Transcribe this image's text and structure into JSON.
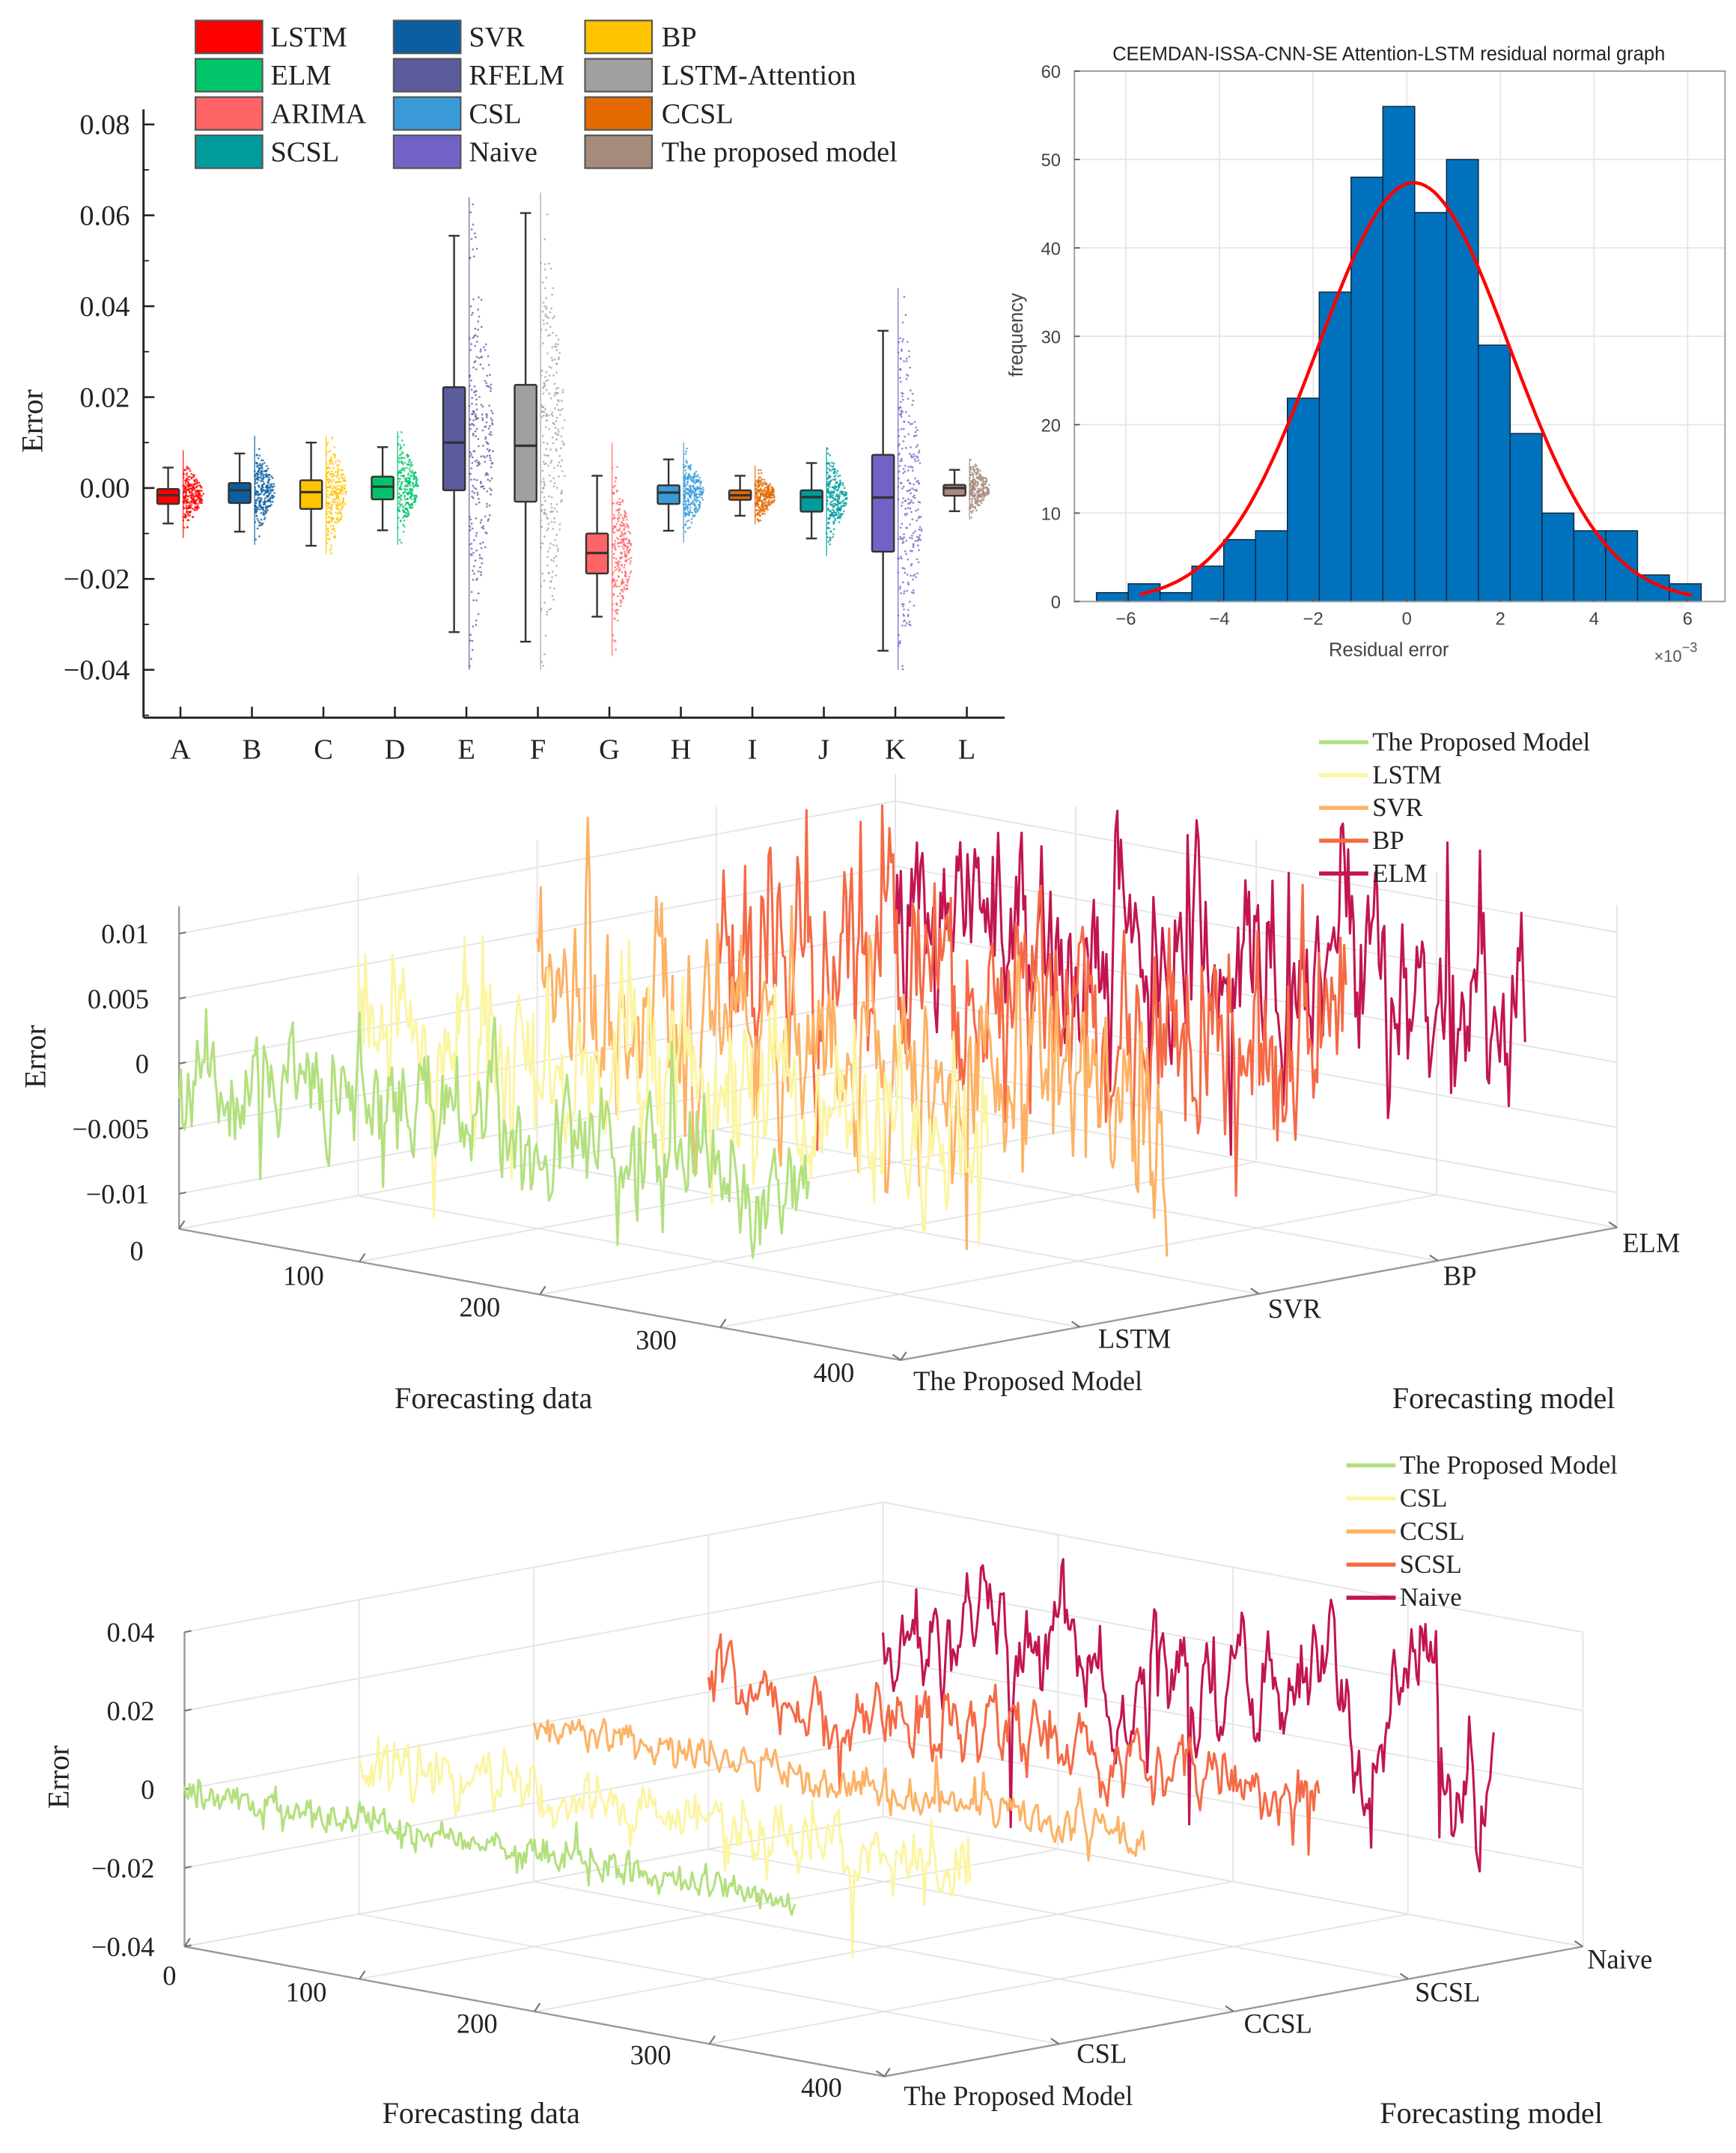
{
  "chart_data": [
    {
      "type": "boxplot",
      "ylabel": "Error",
      "ylim": [
        -0.0505,
        0.08
      ],
      "yticks": [
        {
          "value": 0.08,
          "label": "0.08"
        },
        {
          "value": 0.06,
          "label": "0.06"
        },
        {
          "value": 0.04,
          "label": "0.04"
        },
        {
          "value": 0.02,
          "label": "0.02"
        },
        {
          "value": 0.0,
          "label": "0.00"
        },
        {
          "value": -0.02,
          "label": "−0.02"
        },
        {
          "value": -0.04,
          "label": "−0.04"
        }
      ],
      "categories": [
        "A",
        "B",
        "C",
        "D",
        "E",
        "F",
        "G",
        "H",
        "I",
        "J",
        "K",
        "L"
      ],
      "boxes": [
        {
          "cat": "A",
          "model": "LSTM",
          "color": "#ff0000",
          "whisker_high": 0.0045,
          "q3": -0.0002,
          "median": -0.0016,
          "q1": -0.0035,
          "whisker_low": -0.0078,
          "scatter_max": 0.0083,
          "scatter_min": -0.011
        },
        {
          "cat": "B",
          "model": "SVR",
          "color": "#0b5ea0",
          "whisker_high": 0.0076,
          "q3": 0.0011,
          "median": -0.0005,
          "q1": -0.0033,
          "whisker_low": -0.0096,
          "scatter_max": 0.0115,
          "scatter_min": -0.0125
        },
        {
          "cat": "C",
          "model": "BP",
          "color": "#ffc400",
          "whisker_high": 0.01,
          "q3": 0.0017,
          "median": -0.0009,
          "q1": -0.0046,
          "whisker_low": -0.0127,
          "scatter_max": 0.0115,
          "scatter_min": -0.0145
        },
        {
          "cat": "D",
          "model": "ELM",
          "color": "#00c46a",
          "whisker_high": 0.009,
          "q3": 0.0025,
          "median": 0.0003,
          "q1": -0.0025,
          "whisker_low": -0.0093,
          "scatter_max": 0.0125,
          "scatter_min": -0.0125
        },
        {
          "cat": "E",
          "model": "RFELM",
          "color": "#5b5b9e",
          "whisker_high": 0.0555,
          "q3": 0.0222,
          "median": 0.01,
          "q1": -0.0005,
          "whisker_low": -0.0317,
          "scatter_max": 0.064,
          "scatter_min": -0.04
        },
        {
          "cat": "F",
          "model": "LSTM-Attention",
          "color": "#a0a0a0",
          "whisker_high": 0.0605,
          "q3": 0.0227,
          "median": 0.0093,
          "q1": -0.003,
          "whisker_low": -0.0338,
          "scatter_max": 0.065,
          "scatter_min": -0.04
        },
        {
          "cat": "G",
          "model": "ARIMA",
          "color": "#ff6466",
          "whisker_high": 0.0027,
          "q3": -0.01,
          "median": -0.0143,
          "q1": -0.0188,
          "whisker_low": -0.0283,
          "scatter_max": 0.01,
          "scatter_min": -0.037
        },
        {
          "cat": "H",
          "model": "CSL",
          "color": "#3a9ad8",
          "whisker_high": 0.0063,
          "q3": 0.0006,
          "median": -0.001,
          "q1": -0.0035,
          "whisker_low": -0.0094,
          "scatter_max": 0.01,
          "scatter_min": -0.012
        },
        {
          "cat": "I",
          "model": "CCSL",
          "color": "#e36a00",
          "whisker_high": 0.0027,
          "q3": -0.0005,
          "median": -0.0016,
          "q1": -0.0026,
          "whisker_low": -0.0061,
          "scatter_max": 0.005,
          "scatter_min": -0.008
        },
        {
          "cat": "J",
          "model": "SCSL",
          "color": "#009c9c",
          "whisker_high": 0.0055,
          "q3": -0.0005,
          "median": -0.002,
          "q1": -0.0052,
          "whisker_low": -0.0111,
          "scatter_max": 0.009,
          "scatter_min": -0.015
        },
        {
          "cat": "K",
          "model": "Naive",
          "color": "#7163c6",
          "whisker_high": 0.0346,
          "q3": 0.0073,
          "median": -0.0021,
          "q1": -0.014,
          "whisker_low": -0.0358,
          "scatter_max": 0.044,
          "scatter_min": -0.04
        },
        {
          "cat": "L",
          "model": "The proposed model",
          "color": "#a68a7c",
          "whisker_high": 0.004,
          "q3": 0.0007,
          "median": 0.0,
          "q1": -0.0017,
          "whisker_low": -0.0051,
          "scatter_max": 0.0065,
          "scatter_min": -0.007
        }
      ],
      "legend": {
        "placement": "top",
        "columns": [
          [
            {
              "label": "LSTM",
              "color": "#ff0000"
            },
            {
              "label": "ELM",
              "color": "#00c46a"
            },
            {
              "label": "ARIMA",
              "color": "#ff6466"
            },
            {
              "label": "SCSL",
              "color": "#009c9c"
            }
          ],
          [
            {
              "label": "SVR",
              "color": "#0b5ea0"
            },
            {
              "label": "RFELM",
              "color": "#5b5b9e"
            },
            {
              "label": "CSL",
              "color": "#3a9ad8"
            },
            {
              "label": "Naive",
              "color": "#7163c6"
            }
          ],
          [
            {
              "label": "BP",
              "color": "#ffc400"
            },
            {
              "label": "LSTM-Attention",
              "color": "#a0a0a0"
            },
            {
              "label": "CCSL",
              "color": "#e36a00"
            },
            {
              "label": "The proposed model",
              "color": "#a68a7c"
            }
          ]
        ]
      }
    },
    {
      "type": "bar",
      "title": "CEEMDAN-ISSA-CNN-SE Attention-LSTM residual normal graph",
      "xlabel": "Residual error",
      "xscale_label": "×10",
      "xscale_exp": "−3",
      "ylabel": "frequency",
      "xlim": [
        -7.1,
        6.8
      ],
      "ylim": [
        0,
        60
      ],
      "grid": true,
      "xticks": [
        {
          "value": -6,
          "label": "−6"
        },
        {
          "value": -4,
          "label": "−4"
        },
        {
          "value": -2,
          "label": "−2"
        },
        {
          "value": 0,
          "label": "0"
        },
        {
          "value": 2,
          "label": "2"
        },
        {
          "value": 4,
          "label": "4"
        },
        {
          "value": 6,
          "label": "6"
        }
      ],
      "yticks": [
        {
          "value": 0,
          "label": "0"
        },
        {
          "value": 10,
          "label": "10"
        },
        {
          "value": 20,
          "label": "20"
        },
        {
          "value": 30,
          "label": "30"
        },
        {
          "value": 40,
          "label": "40"
        },
        {
          "value": 50,
          "label": "50"
        },
        {
          "value": 60,
          "label": "60"
        }
      ],
      "bin_start": -6.63,
      "bin_width": 0.68,
      "counts": [
        1,
        2,
        1,
        4,
        7,
        8,
        23,
        35,
        48,
        56,
        44,
        50,
        29,
        19,
        10,
        8,
        8,
        3,
        2
      ],
      "bar_color": "#0072bd",
      "fit": {
        "type": "normal",
        "mean": 0.15,
        "std": 2.05,
        "range": [
          -5.7,
          6.1
        ],
        "color": "#ff0000"
      }
    },
    {
      "type": "line3d",
      "xlabel": "Forecasting data",
      "ylabel": "Forecasting model",
      "zlabel": "Error",
      "xlim": [
        0,
        400
      ],
      "zlim": [
        -0.0127,
        0.0121
      ],
      "xticks": [
        {
          "value": 0,
          "label": "0"
        },
        {
          "value": 100,
          "label": "100"
        },
        {
          "value": 200,
          "label": "200"
        },
        {
          "value": 300,
          "label": "300"
        },
        {
          "value": 400,
          "label": "400"
        }
      ],
      "zticks": [
        {
          "value": 0.01,
          "label": "0.01"
        },
        {
          "value": 0.005,
          "label": "0.005"
        },
        {
          "value": 0,
          "label": "0"
        },
        {
          "value": -0.005,
          "label": "−0.005"
        },
        {
          "value": -0.01,
          "label": "−0.01"
        }
      ],
      "series": [
        {
          "name": "The Proposed Model",
          "color": "#b3e07f",
          "points": 350,
          "mean": -0.0005,
          "std": 0.0022,
          "ar": 0.5,
          "seed": 11
        },
        {
          "name": "LSTM",
          "color": "#fbf5a4",
          "points": 350,
          "mean": -0.0005,
          "std": 0.0035,
          "ar": 0.5,
          "seed": 23
        },
        {
          "name": "SVR",
          "color": "#fdb265",
          "points": 350,
          "mean": 0.0005,
          "std": 0.0042,
          "ar": 0.55,
          "seed": 37
        },
        {
          "name": "BP",
          "color": "#f56a45",
          "points": 350,
          "mean": 0.001,
          "std": 0.0048,
          "ar": 0.55,
          "seed": 41
        },
        {
          "name": "ELM",
          "color": "#c2154f",
          "points": 350,
          "mean": 0.002,
          "std": 0.0045,
          "ar": 0.6,
          "seed": 59
        }
      ],
      "legend": {
        "placement": "top-right"
      }
    },
    {
      "type": "line3d",
      "xlabel": "Forecasting data",
      "ylabel": "Forecasting model",
      "zlabel": "Error",
      "xlim": [
        0,
        400
      ],
      "zlim": [
        -0.04,
        0.04
      ],
      "xticks": [
        {
          "value": 0,
          "label": "0"
        },
        {
          "value": 100,
          "label": "100"
        },
        {
          "value": 200,
          "label": "200"
        },
        {
          "value": 300,
          "label": "300"
        },
        {
          "value": 400,
          "label": "400"
        }
      ],
      "zticks": [
        {
          "value": 0.04,
          "label": "0.04"
        },
        {
          "value": 0.02,
          "label": "0.02"
        },
        {
          "value": 0,
          "label": "0"
        },
        {
          "value": -0.02,
          "label": "−0.02"
        },
        {
          "value": -0.04,
          "label": "−0.04"
        }
      ],
      "series": [
        {
          "name": "The Proposed Model",
          "color": "#b3e07f",
          "points": 350,
          "mean": 0.0,
          "std": 0.0022,
          "ar": 0.4,
          "seed": 71
        },
        {
          "name": "CSL",
          "color": "#fbf5a4",
          "points": 350,
          "mean": 0.0,
          "std": 0.0045,
          "ar": 0.55,
          "seed": 83
        },
        {
          "name": "CCSL",
          "color": "#fdb265",
          "points": 350,
          "mean": 0.0,
          "std": 0.0025,
          "ar": 0.5,
          "seed": 97
        },
        {
          "name": "SCSL",
          "color": "#f56a45",
          "points": 350,
          "mean": 0.003,
          "std": 0.0055,
          "ar": 0.7,
          "seed": 101
        },
        {
          "name": "Naive",
          "color": "#c2154f",
          "points": 350,
          "mean": 0.008,
          "std": 0.011,
          "ar": 0.85,
          "seed": 113
        }
      ],
      "legend": {
        "placement": "top-right"
      }
    }
  ]
}
